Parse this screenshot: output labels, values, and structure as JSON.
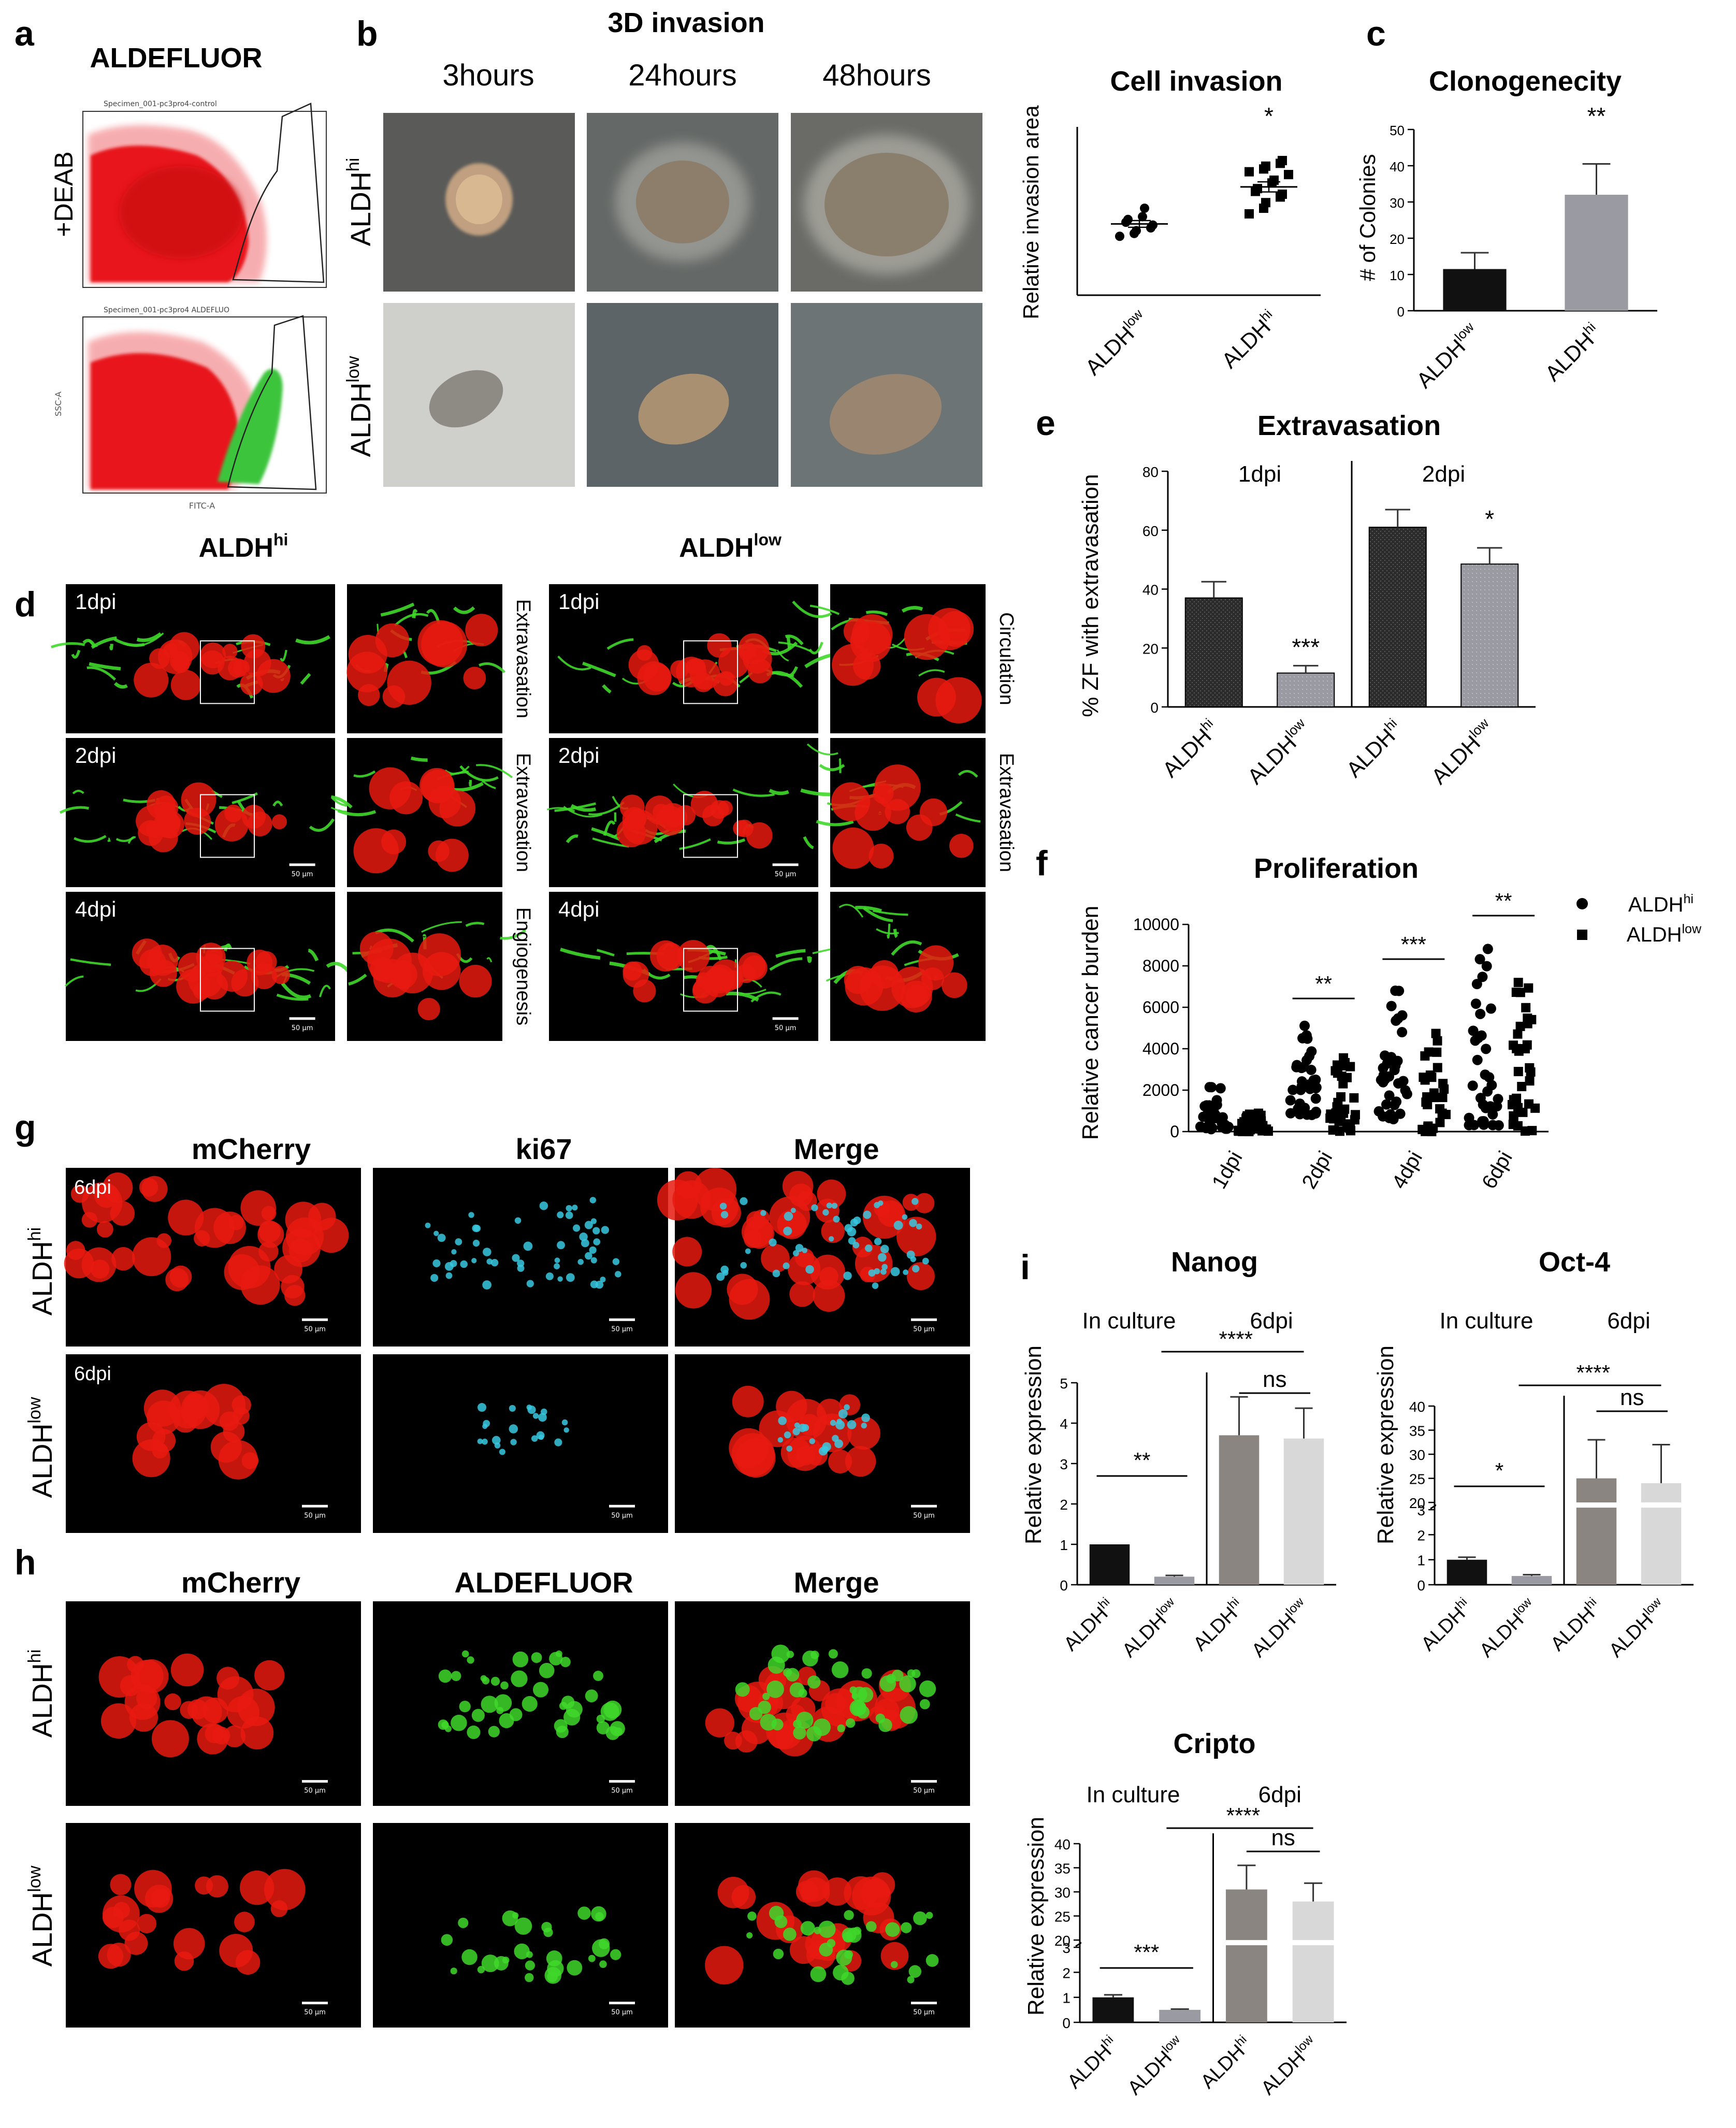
{
  "colors": {
    "black_bar": "#111111",
    "grey_bar": "#9a9aa2",
    "dark_grey_bar": "#8a8580",
    "light_grey_bar": "#d8d8d8",
    "flow_red": "#e8161b",
    "flow_green": "#3cc43c",
    "mcherry": "#e81a10",
    "vessel_green": "#3fd82a",
    "ki67_cyan": "#38c8e0"
  },
  "panel_letters": [
    "a",
    "b",
    "c",
    "d",
    "e",
    "f",
    "g",
    "h",
    "i"
  ],
  "panel_a": {
    "title": "ALDEFLUOR",
    "row_labels": [
      "+DEAB",
      ""
    ],
    "plot_headers": [
      "Specimen_001-pc3pro4-control",
      "Specimen_001-pc3pro4 ALDEFLUO"
    ],
    "y_axis_label": "SSC-A",
    "x_axis_label": "FITC-A"
  },
  "panel_b": {
    "title": "3D invasion",
    "timepoints": [
      "3hours",
      "24hours",
      "48hours"
    ],
    "row_labels": [
      "ALDH",
      "ALDH"
    ],
    "row_sups": [
      "hi",
      "low"
    ],
    "chart_title": "Cell invasion",
    "significance": "*"
  },
  "panel_d": {
    "headers": [
      "ALDH",
      "ALDH"
    ],
    "header_sups": [
      "hi",
      "low"
    ],
    "left_rows": [
      {
        "dpi": "1dpi",
        "side_label": "Extravasation"
      },
      {
        "dpi": "2dpi",
        "side_label": "Extravasation"
      },
      {
        "dpi": "4dpi",
        "side_label": "Engiogenesis"
      }
    ],
    "right_rows": [
      {
        "dpi": "1dpi",
        "side_label": "Circulation"
      },
      {
        "dpi": "2dpi",
        "side_label": "Extravasation"
      },
      {
        "dpi": "4dpi",
        "side_label": ""
      }
    ],
    "scale_bar": "50 µm"
  },
  "panel_g": {
    "columns": [
      "mCherry",
      "ki67",
      "Merge"
    ],
    "row_labels": [
      "ALDH",
      "ALDH"
    ],
    "row_sups": [
      "hi",
      "low"
    ],
    "dpi_labels": [
      "6dpi",
      "6dpi"
    ],
    "scale_bar": "50 µm"
  },
  "panel_h": {
    "columns": [
      "mCherry",
      "ALDEFLUOR",
      "Merge"
    ],
    "row_labels": [
      "ALDH",
      "ALDH"
    ],
    "row_sups": [
      "hi",
      "low"
    ],
    "scale_bar": "50 µm"
  },
  "chart_data": [
    {
      "id": "b_invasion",
      "type": "scatter",
      "title": "Cell invasion",
      "ylabel": "Relative invasion area",
      "categories": [
        "ALDH",
        "ALDH"
      ],
      "category_sups": [
        "low",
        "hi"
      ],
      "yticks": [],
      "ylim": [
        0,
        3
      ],
      "series": [
        {
          "values": [
            1.05,
            1.1,
            1.15,
            1.2,
            1.25,
            1.3,
            1.35,
            1.4,
            1.55
          ],
          "mean": 1.27,
          "sem": 0.06,
          "marker": "circle"
        },
        {
          "values": [
            1.45,
            1.55,
            1.65,
            1.75,
            1.8,
            1.85,
            1.9,
            2.0,
            2.05,
            2.15,
            2.2,
            2.25,
            2.3,
            2.35,
            2.4
          ],
          "mean": 1.93,
          "sem": 0.09,
          "marker": "square"
        }
      ],
      "significance": [
        {
          "text": "*",
          "over": 1
        }
      ]
    },
    {
      "id": "c_clonogenecity",
      "type": "bar",
      "title": "Clonogenecity",
      "ylabel": "# of Colonies",
      "categories": [
        "ALDH",
        "ALDH"
      ],
      "category_sups": [
        "low",
        "hi"
      ],
      "values": [
        11.5,
        32
      ],
      "errors": [
        4.5,
        8.5
      ],
      "yticks": [
        0,
        10,
        20,
        30,
        40,
        50
      ],
      "ylim": [
        0,
        50
      ],
      "significance": [
        {
          "text": "**",
          "over": 1
        }
      ]
    },
    {
      "id": "e_extravasation",
      "type": "bar",
      "title": "Extravasation",
      "ylabel": "% ZF with extravasation",
      "group_labels": [
        "1dpi",
        "2dpi"
      ],
      "categories": [
        "ALDH",
        "ALDH",
        "ALDH",
        "ALDH"
      ],
      "category_sups": [
        "hi",
        "low",
        "hi",
        "low"
      ],
      "values": [
        37,
        11.5,
        61,
        48.5
      ],
      "errors": [
        5.5,
        2.5,
        6,
        5.5
      ],
      "yticks": [
        0,
        20,
        40,
        60,
        80
      ],
      "ylim": [
        0,
        80
      ],
      "significance": [
        {
          "text": "***",
          "over": 1
        },
        {
          "text": "*",
          "over": 3
        }
      ]
    },
    {
      "id": "f_proliferation",
      "type": "scatter",
      "title": "Proliferation",
      "ylabel": "Relative cancer burden",
      "categories": [
        "1dpi",
        "2dpi",
        "4dpi",
        "6dpi"
      ],
      "yticks": [
        0,
        2000,
        4000,
        6000,
        8000,
        10000
      ],
      "ylim": [
        0,
        10000
      ],
      "legend": [
        "ALDH",
        "ALDH"
      ],
      "legend_sups": [
        "hi",
        "low"
      ],
      "series": [
        {
          "name": "ALDHhi",
          "ranges": [
            [
              100,
              2300
            ],
            [
              800,
              5300
            ],
            [
              600,
              7200
            ],
            [
              300,
              9300
            ]
          ]
        },
        {
          "name": "ALDHlow",
          "ranges": [
            [
              0,
              1000
            ],
            [
              0,
              3800
            ],
            [
              0,
              5700
            ],
            [
              0,
              7300
            ]
          ]
        }
      ],
      "significance": [
        {
          "text": "**",
          "over": 1
        },
        {
          "text": "***",
          "over": 2
        },
        {
          "text": "**",
          "over": 3
        }
      ]
    },
    {
      "id": "i_nanog",
      "type": "bar",
      "title": "Nanog",
      "ylabel": "Relative expression",
      "group_labels": [
        "In culture",
        "6dpi"
      ],
      "categories": [
        "ALDH",
        "ALDH",
        "ALDH",
        "ALDH"
      ],
      "category_sups": [
        "hi",
        "low",
        "hi",
        "low"
      ],
      "values": [
        1.0,
        0.2,
        3.7,
        3.62
      ],
      "errors": [
        0,
        0.03,
        0.95,
        0.75
      ],
      "yticks": [
        0,
        1,
        2,
        3,
        4,
        5
      ],
      "ylim": [
        0,
        5
      ],
      "significance": [
        {
          "text": "**"
        },
        {
          "text": "****"
        },
        {
          "text": "ns"
        }
      ]
    },
    {
      "id": "i_oct4",
      "type": "bar",
      "title": "Oct-4",
      "ylabel": "Relative expression",
      "group_labels": [
        "In culture",
        "6dpi"
      ],
      "categories": [
        "ALDH",
        "ALDH",
        "ALDH",
        "ALDH"
      ],
      "category_sups": [
        "hi",
        "low",
        "hi",
        "low"
      ],
      "values": [
        1.0,
        0.35,
        25,
        24
      ],
      "errors": [
        0.1,
        0.05,
        8,
        8
      ],
      "yticks": [
        0,
        1,
        2,
        3,
        20,
        25,
        30,
        35,
        40
      ],
      "ylim": [
        0,
        40
      ],
      "axis_break": [
        3,
        20
      ],
      "significance": [
        {
          "text": "*"
        },
        {
          "text": "****"
        },
        {
          "text": "ns"
        }
      ]
    },
    {
      "id": "i_cripto",
      "type": "bar",
      "title": "Cripto",
      "ylabel": "Relative expression",
      "group_labels": [
        "In culture",
        "6dpi"
      ],
      "categories": [
        "ALDH",
        "ALDH",
        "ALDH",
        "ALDH"
      ],
      "category_sups": [
        "hi",
        "low",
        "hi",
        "low"
      ],
      "values": [
        1.0,
        0.5,
        30.5,
        28
      ],
      "errors": [
        0.1,
        0.03,
        5,
        3.8
      ],
      "yticks": [
        0,
        1,
        2,
        3,
        20,
        25,
        30,
        35,
        40
      ],
      "ylim": [
        0,
        40
      ],
      "axis_break": [
        3,
        20
      ],
      "significance": [
        {
          "text": "***"
        },
        {
          "text": "****"
        },
        {
          "text": "ns"
        }
      ]
    }
  ]
}
